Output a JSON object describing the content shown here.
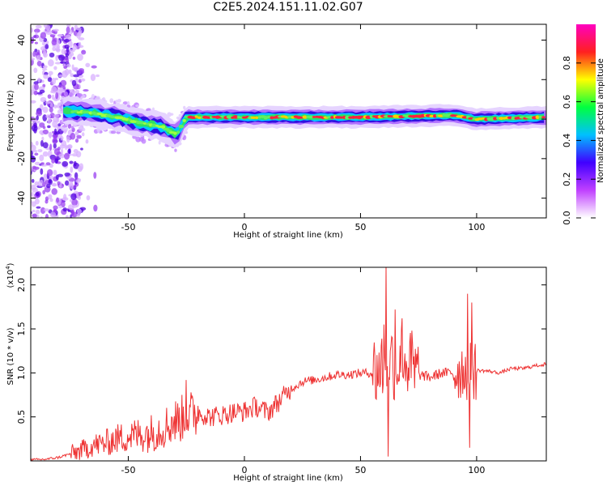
{
  "title": "C2E5.2024.151.11.02.G07",
  "chart_data": [
    {
      "type": "heatmap",
      "xlabel": "Height of straight line (km)",
      "ylabel": "Frequency (Hz)",
      "xlim": [
        -92,
        130
      ],
      "ylim": [
        -50,
        48
      ],
      "xticks": [
        -50,
        0,
        50,
        100
      ],
      "yticks": [
        -40,
        -20,
        0,
        20,
        40
      ],
      "ridge_frequency": [
        {
          "x": -75,
          "y": 4
        },
        {
          "x": -65,
          "y": 3
        },
        {
          "x": -55,
          "y": 1
        },
        {
          "x": -45,
          "y": -2
        },
        {
          "x": -35,
          "y": -4
        },
        {
          "x": -29,
          "y": -8
        },
        {
          "x": -25,
          "y": 1
        },
        {
          "x": 0,
          "y": 1
        },
        {
          "x": 50,
          "y": 1
        },
        {
          "x": 90,
          "y": 2
        },
        {
          "x": 100,
          "y": 0
        },
        {
          "x": 130,
          "y": 1
        }
      ],
      "colorbar": {
        "label": "Normalized spectral amplitude",
        "range": [
          0,
          1
        ],
        "ticks": [
          "0.0",
          "0.2",
          "0.4",
          "0.6",
          "0.8"
        ],
        "colors": [
          "#ffffff",
          "#c040ff",
          "#4000ff",
          "#00c0ff",
          "#00ff40",
          "#ffff00",
          "#ff2020",
          "#ff00c0"
        ]
      }
    },
    {
      "type": "line",
      "ylabel": "SNR (10 * v/v)",
      "multiplier": "(x10",
      "multiplier_exp": "4",
      "xlabel": "Height of straight line (km)",
      "xlim": [
        -92,
        130
      ],
      "ylim": [
        0,
        2.2
      ],
      "xticks": [
        -50,
        0,
        50,
        100
      ],
      "yticks": [
        "0.5",
        "1.0",
        "1.5",
        "2.0"
      ],
      "ytick_values": [
        0.5,
        1.0,
        1.5,
        2.0
      ],
      "color": "#ee3333",
      "series": [
        {
          "x": [
            -92,
            -85,
            -80,
            -75,
            -70,
            -65,
            -60,
            -55,
            -50,
            -45,
            -40,
            -35,
            -30,
            -25,
            -20,
            -15,
            -10,
            -5,
            0,
            5,
            10,
            15,
            20,
            25,
            30,
            35,
            40,
            45,
            50,
            55,
            58,
            60,
            62,
            65,
            70,
            72,
            75,
            80,
            85,
            90,
            95,
            97,
            100,
            105,
            110,
            115,
            120,
            125,
            130
          ],
          "y": [
            0.01,
            0.02,
            0.04,
            0.08,
            0.12,
            0.18,
            0.2,
            0.25,
            0.28,
            0.3,
            0.32,
            0.38,
            0.45,
            0.5,
            0.55,
            0.5,
            0.52,
            0.55,
            0.56,
            0.62,
            0.55,
            0.68,
            0.82,
            0.9,
            0.92,
            0.95,
            0.98,
            0.98,
            1.0,
            1.0,
            1.05,
            1.1,
            1.2,
            1.1,
            1.15,
            1.0,
            0.98,
            0.95,
            1.0,
            1.0,
            1.05,
            1.0,
            1.03,
            1.02,
            1.0,
            1.05,
            1.05,
            1.08,
            1.1
          ],
          "peaks": [
            {
              "x": -25,
              "y": 0.92
            },
            {
              "x": 60,
              "y": 1.55
            },
            {
              "x": 61,
              "y": 2.22
            },
            {
              "x": 62,
              "y": 0.05
            },
            {
              "x": 65,
              "y": 1.72
            },
            {
              "x": 68,
              "y": 1.62
            },
            {
              "x": 72,
              "y": 1.48
            },
            {
              "x": 96,
              "y": 1.9
            },
            {
              "x": 97,
              "y": 0.15
            },
            {
              "x": 98,
              "y": 1.8
            }
          ]
        }
      ]
    }
  ]
}
